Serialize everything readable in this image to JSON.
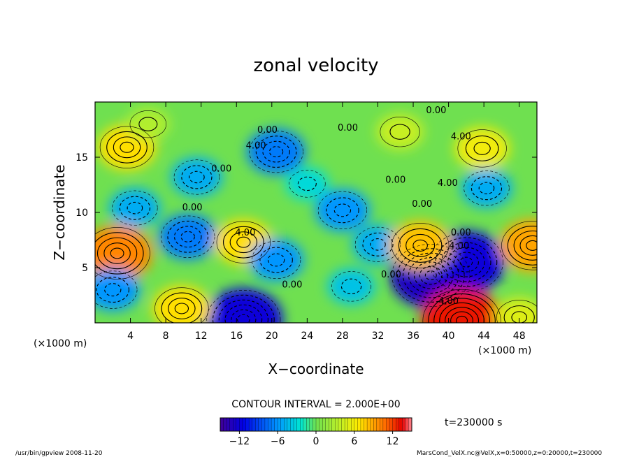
{
  "chart_data": {
    "type": "heatmap",
    "title": "zonal velocity",
    "xlabel": "X−coordinate",
    "ylabel": "Z−coordinate",
    "x_unit_left": "(×1000 m)",
    "x_unit_right": "(×1000 m)",
    "xlim": [
      0,
      50
    ],
    "ylim": [
      0,
      20
    ],
    "x_ticks": [
      "4",
      "8",
      "12",
      "16",
      "20",
      "24",
      "28",
      "32",
      "36",
      "40",
      "44",
      "48"
    ],
    "x_tick_values": [
      4,
      8,
      12,
      16,
      20,
      24,
      28,
      32,
      36,
      40,
      44,
      48
    ],
    "y_ticks": [
      "5",
      "10",
      "15"
    ],
    "y_tick_values": [
      5,
      10,
      15
    ],
    "contour_interval_text": "CONTOUR INTERVAL = 2.000E+00",
    "time_text": "t=230000 s",
    "colorbar": {
      "ticks": [
        "−12",
        "−6",
        "0",
        "6",
        "12"
      ],
      "tick_values": [
        -12,
        -6,
        0,
        6,
        12
      ],
      "range": [
        -15,
        15
      ]
    },
    "contour_labels": [
      {
        "text": "0.00",
        "x": 38.6,
        "z": 19.0
      },
      {
        "text": "0.00",
        "x": 19.5,
        "z": 17.2
      },
      {
        "text": "0.00",
        "x": 28.6,
        "z": 17.4
      },
      {
        "text": "4.00",
        "x": 18.2,
        "z": 15.8
      },
      {
        "text": "4.00",
        "x": 41.4,
        "z": 16.6
      },
      {
        "text": "0.00",
        "x": 14.3,
        "z": 13.7
      },
      {
        "text": "0.00",
        "x": 34.0,
        "z": 12.7
      },
      {
        "text": "4.00",
        "x": 39.9,
        "z": 12.4
      },
      {
        "text": "0.00",
        "x": 37.0,
        "z": 10.5
      },
      {
        "text": "0.00",
        "x": 11.0,
        "z": 10.2
      },
      {
        "text": "0.00",
        "x": 41.4,
        "z": 7.9
      },
      {
        "text": "4.00",
        "x": 41.2,
        "z": 6.7
      },
      {
        "text": "4.00",
        "x": 17.0,
        "z": 7.9
      },
      {
        "text": "0.00",
        "x": 22.3,
        "z": 3.2
      },
      {
        "text": "0.00",
        "x": 33.5,
        "z": 4.1
      },
      {
        "text": "4.00",
        "x": 40.0,
        "z": 1.7
      }
    ],
    "features": [
      {
        "kind": "jet",
        "x": 38,
        "z": 4.3,
        "value": -13
      },
      {
        "kind": "jet",
        "x": 42,
        "z": 5.5,
        "value": -12
      },
      {
        "kind": "jet",
        "x": 41.5,
        "z": 0.2,
        "value": 13
      },
      {
        "kind": "jet",
        "x": 2.5,
        "z": 6.3,
        "value": 10
      },
      {
        "kind": "jet",
        "x": 49.5,
        "z": 7.0,
        "value": 9
      },
      {
        "kind": "jet",
        "x": 16.8,
        "z": 0.3,
        "value": -12
      },
      {
        "kind": "jet",
        "x": 10.5,
        "z": 7.8,
        "value": -7
      },
      {
        "kind": "jet",
        "x": 16.8,
        "z": 7.3,
        "value": 7
      },
      {
        "kind": "jet",
        "x": 2.0,
        "z": 3.0,
        "value": -6
      },
      {
        "kind": "jet",
        "x": 20.5,
        "z": 5.7,
        "value": -6
      },
      {
        "kind": "jet",
        "x": 11.5,
        "z": 13.2,
        "value": -5
      },
      {
        "kind": "jet",
        "x": 20.5,
        "z": 15.5,
        "value": -7
      },
      {
        "kind": "jet",
        "x": 43.8,
        "z": 15.8,
        "value": 6
      },
      {
        "kind": "jet",
        "x": 44.3,
        "z": 12.2,
        "value": -5
      },
      {
        "kind": "jet",
        "x": 3.6,
        "z": 15.9,
        "value": 7
      },
      {
        "kind": "jet",
        "x": 28.0,
        "z": 10.2,
        "value": -6
      },
      {
        "kind": "jet",
        "x": 32.0,
        "z": 7.1,
        "value": -5
      },
      {
        "kind": "jet",
        "x": 36.8,
        "z": 7.0,
        "value": 8
      },
      {
        "kind": "jet",
        "x": 9.8,
        "z": 1.3,
        "value": 7
      },
      {
        "kind": "jet",
        "x": 48.0,
        "z": 0.5,
        "value": 5
      },
      {
        "kind": "jet",
        "x": 29.0,
        "z": 3.3,
        "value": -4
      },
      {
        "kind": "jet",
        "x": 4.5,
        "z": 10.4,
        "value": -5
      },
      {
        "kind": "jet",
        "x": 24.0,
        "z": 12.6,
        "value": -3
      },
      {
        "kind": "jet",
        "x": 6.0,
        "z": 18.0,
        "value": 3
      },
      {
        "kind": "jet",
        "x": 34.5,
        "z": 17.3,
        "value": 4
      }
    ]
  },
  "footer": {
    "left": "/usr/bin/gpview   2008-11-20",
    "right": "MarsCond_VelX.nc@VelX,x=0:50000,z=0:20000,t=230000"
  }
}
